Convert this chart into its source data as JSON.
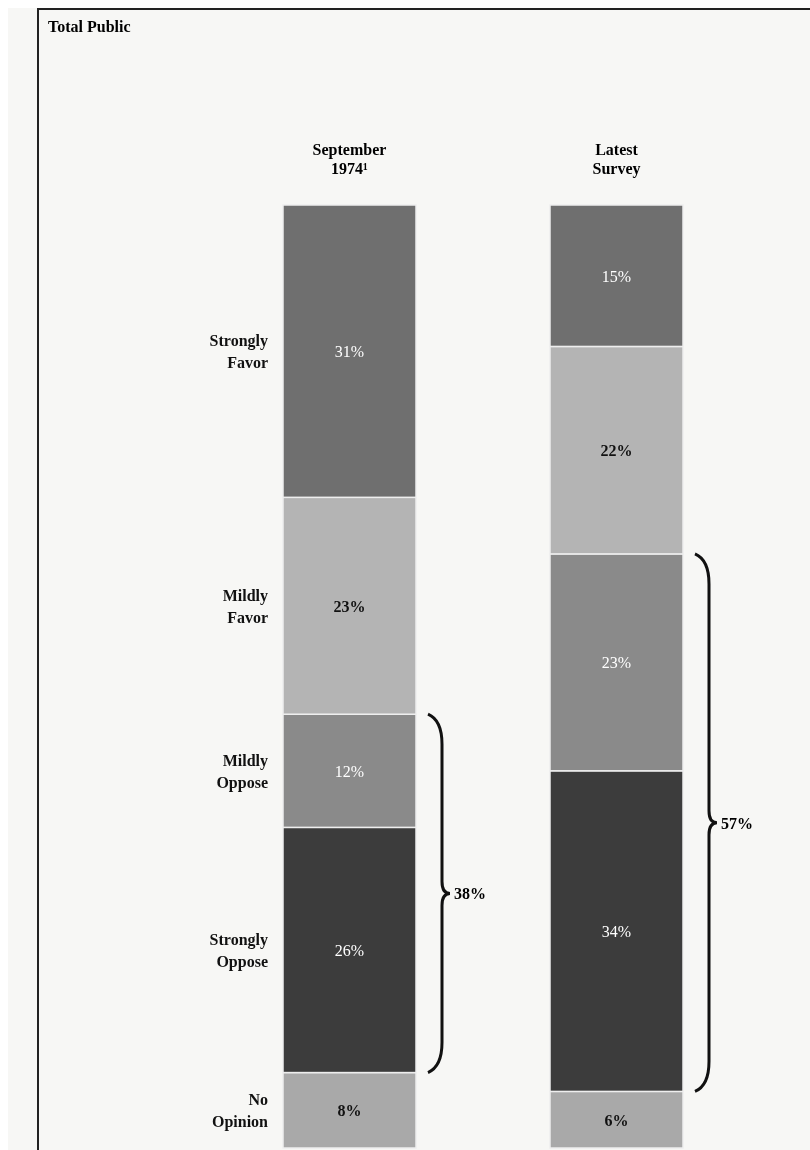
{
  "chart_data": {
    "type": "bar",
    "stacked": true,
    "title": "Total Public",
    "categories": [
      "September 1974¹",
      "Latest Survey"
    ],
    "series": [
      {
        "name": "No Opinion",
        "color": "#a9a9a9",
        "values": [
          8,
          6
        ],
        "value_labels": [
          "8%",
          "6%"
        ]
      },
      {
        "name": "Strongly Oppose",
        "color": "#3c3c3c",
        "values": [
          26,
          34
        ],
        "value_labels": [
          "26%",
          "34%"
        ]
      },
      {
        "name": "Mildly Oppose",
        "color": "#8a8a8a",
        "values": [
          12,
          23
        ],
        "value_labels": [
          "12%",
          "23%"
        ]
      },
      {
        "name": "Mildly Favor",
        "color": "#b4b4b4",
        "values": [
          23,
          22
        ],
        "value_labels": [
          "23%",
          "22%"
        ]
      },
      {
        "name": "Strongly Favor",
        "color": "#6f6f6f",
        "values": [
          31,
          15
        ],
        "value_labels": [
          "31%",
          "15%"
        ]
      }
    ],
    "annotations": [
      "38%",
      "57%"
    ]
  }
}
